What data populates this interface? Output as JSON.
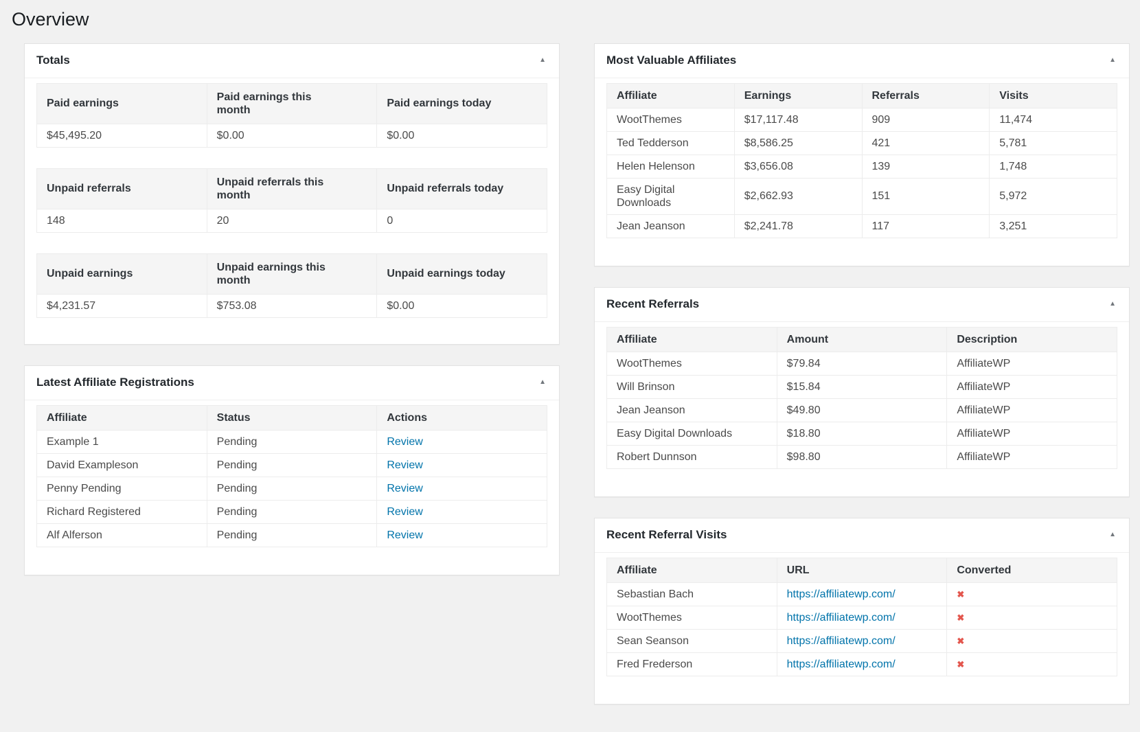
{
  "page": {
    "title": "Overview"
  },
  "colors": {
    "link": "#0073aa",
    "red_x": "#e3564d"
  },
  "icons": {
    "collapse": "▲",
    "not_converted": "✖"
  },
  "panels": {
    "totals": {
      "title": "Totals",
      "tables": [
        {
          "headers": [
            "Paid earnings",
            "Paid earnings this month",
            "Paid earnings today"
          ],
          "rows": [
            [
              "$45,495.20",
              "$0.00",
              "$0.00"
            ]
          ]
        },
        {
          "headers": [
            "Unpaid referrals",
            "Unpaid referrals this month",
            "Unpaid referrals today"
          ],
          "rows": [
            [
              "148",
              "20",
              "0"
            ]
          ]
        },
        {
          "headers": [
            "Unpaid earnings",
            "Unpaid earnings this month",
            "Unpaid earnings today"
          ],
          "rows": [
            [
              "$4,231.57",
              "$753.08",
              "$0.00"
            ]
          ]
        }
      ]
    },
    "registrations": {
      "title": "Latest Affiliate Registrations",
      "headers": [
        "Affiliate",
        "Status",
        "Actions"
      ],
      "rows": [
        {
          "affiliate": "Example 1",
          "status": "Pending",
          "action": "Review"
        },
        {
          "affiliate": "David Exampleson",
          "status": "Pending",
          "action": "Review"
        },
        {
          "affiliate": "Penny Pending",
          "status": "Pending",
          "action": "Review"
        },
        {
          "affiliate": "Richard Registered",
          "status": "Pending",
          "action": "Review"
        },
        {
          "affiliate": "Alf Alferson",
          "status": "Pending",
          "action": "Review"
        }
      ]
    },
    "most_valuable": {
      "title": "Most Valuable Affiliates",
      "headers": [
        "Affiliate",
        "Earnings",
        "Referrals",
        "Visits"
      ],
      "rows": [
        [
          "WootThemes",
          "$17,117.48",
          "909",
          "11,474"
        ],
        [
          "Ted Tedderson",
          "$8,586.25",
          "421",
          "5,781"
        ],
        [
          "Helen Helenson",
          "$3,656.08",
          "139",
          "1,748"
        ],
        [
          "Easy Digital Downloads",
          "$2,662.93",
          "151",
          "5,972"
        ],
        [
          "Jean Jeanson",
          "$2,241.78",
          "117",
          "3,251"
        ]
      ]
    },
    "recent_referrals": {
      "title": "Recent Referrals",
      "headers": [
        "Affiliate",
        "Amount",
        "Description"
      ],
      "rows": [
        [
          "WootThemes",
          "$79.84",
          "AffiliateWP"
        ],
        [
          "Will Brinson",
          "$15.84",
          "AffiliateWP"
        ],
        [
          "Jean Jeanson",
          "$49.80",
          "AffiliateWP"
        ],
        [
          "Easy Digital Downloads",
          "$18.80",
          "AffiliateWP"
        ],
        [
          "Robert Dunnson",
          "$98.80",
          "AffiliateWP"
        ]
      ]
    },
    "recent_visits": {
      "title": "Recent Referral Visits",
      "headers": [
        "Affiliate",
        "URL",
        "Converted"
      ],
      "rows": [
        {
          "affiliate": "Sebastian Bach",
          "url": "https://affiliatewp.com/"
        },
        {
          "affiliate": "WootThemes",
          "url": "https://affiliatewp.com/"
        },
        {
          "affiliate": "Sean Seanson",
          "url": "https://affiliatewp.com/"
        },
        {
          "affiliate": "Fred Frederson",
          "url": "https://affiliatewp.com/"
        }
      ]
    }
  }
}
